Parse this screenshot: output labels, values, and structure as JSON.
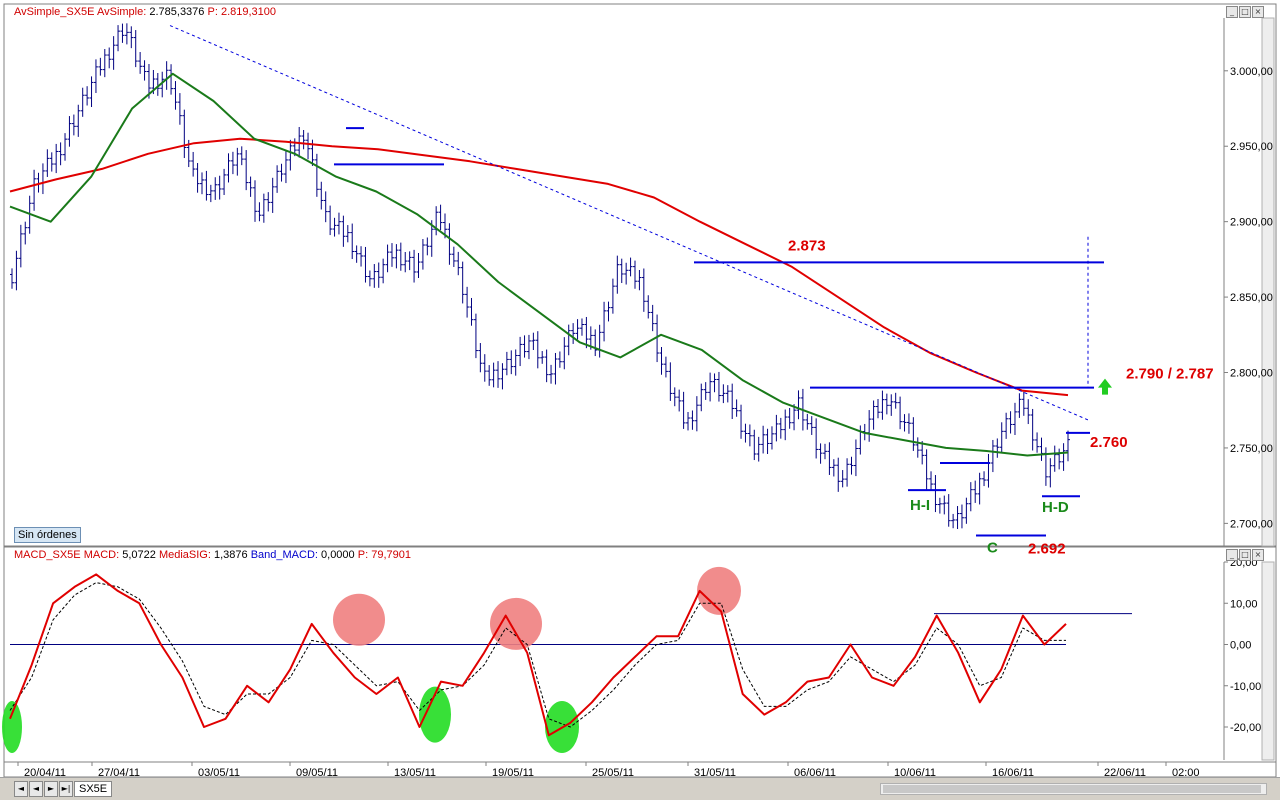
{
  "upper_header": {
    "series_name": "AvSimple_SX5E",
    "indicator_label": "AvSimple:",
    "indicator_value": "2.785,3376",
    "p_label": "P:",
    "p_value": "2.819,3100"
  },
  "lower_header": {
    "series_name": "MACD_SX5E",
    "macd_label": "MACD:",
    "macd_value": "5,0722",
    "signal_label": "MediaSIG:",
    "signal_value": "1,3876",
    "band_label": "Band_MACD:",
    "band_value": "0,0000",
    "p_label": "P:",
    "p_value": "79,7901"
  },
  "no_orders_label": "Sin órdenes",
  "symbol_tab": "SX5E",
  "nav_buttons": [
    "◄",
    "◄",
    "►",
    "►|"
  ],
  "colors": {
    "price_bars": "#000080",
    "ma_long": "#e00000",
    "ma_short": "#1a7a1a",
    "levels": "#0000dd",
    "annotation_red": "#dd0000",
    "annotation_green": "#1a8a1a",
    "macd": "#e00000",
    "signal": "#000000",
    "peak_circle": "#f08080",
    "trough_circle": "#22dd22",
    "arrow": "#22cc22"
  },
  "chart_data": [
    {
      "type": "candlestick",
      "title": "",
      "xlabel": "",
      "ylabel": "",
      "ylim": [
        2685,
        3035
      ],
      "y_ticks": [
        "3.000,00",
        "2.950,00",
        "2.900,00",
        "2.850,00",
        "2.800,00",
        "2.750,00",
        "2.700,00"
      ],
      "y_tick_values": [
        3000,
        2950,
        2900,
        2850,
        2800,
        2750,
        2700
      ],
      "x_tick_labels": [
        "20/04/11",
        "27/04/11",
        "03/05/11",
        "09/05/11",
        "13/05/11",
        "19/05/11",
        "25/05/11",
        "31/05/11",
        "06/06/11",
        "10/06/11",
        "16/06/11",
        "22/06/11",
        "02:00"
      ],
      "grid": false,
      "series": [
        {
          "name": "SX5E",
          "values": [
            2865,
            2925,
            2945,
            2975,
            3005,
            3030,
            2990,
            2998,
            2930,
            2920,
            2945,
            2905,
            2935,
            2960,
            2900,
            2890,
            2860,
            2880,
            2870,
            2905,
            2860,
            2795,
            2805,
            2820,
            2800,
            2830,
            2820,
            2870,
            2860,
            2800,
            2765,
            2795,
            2780,
            2750,
            2760,
            2780,
            2745,
            2730,
            2765,
            2785,
            2760,
            2720,
            2700,
            2725,
            2760,
            2780,
            2735,
            2750
          ]
        },
        {
          "name": "AvSimple long",
          "values": [
            2920,
            2928,
            2935,
            2945,
            2952,
            2955,
            2953,
            2950,
            2948,
            2944,
            2940,
            2935,
            2930,
            2925,
            2916,
            2900,
            2885,
            2870,
            2850,
            2830,
            2813,
            2800,
            2788,
            2785
          ]
        },
        {
          "name": "AvSimple short",
          "values": [
            2910,
            2900,
            2930,
            2975,
            2998,
            2980,
            2955,
            2945,
            2930,
            2920,
            2905,
            2885,
            2860,
            2840,
            2820,
            2810,
            2825,
            2815,
            2795,
            2780,
            2770,
            2760,
            2755,
            2750,
            2748,
            2745,
            2747
          ]
        }
      ],
      "annotations": [
        {
          "text": "2.873",
          "value": 2873
        },
        {
          "text": "2.790 / 2.787",
          "value": 2790
        },
        {
          "text": "2.760",
          "value": 2760
        },
        {
          "text": "2.692",
          "value": 2692
        },
        {
          "text": "H-I"
        },
        {
          "text": "H-D"
        },
        {
          "text": "C"
        }
      ],
      "horizontal_levels": [
        2873,
        2790,
        2760,
        2740,
        2718,
        2692
      ]
    },
    {
      "type": "line",
      "title": "",
      "xlabel": "",
      "ylabel": "",
      "ylim": [
        -28,
        20
      ],
      "y_ticks": [
        "20,00",
        "10,00",
        "0,00",
        "-10,00",
        "-20,00"
      ],
      "y_tick_values": [
        20,
        10,
        0,
        -10,
        -20
      ],
      "grid": false,
      "series": [
        {
          "name": "MACD",
          "values": [
            -18,
            -5,
            10,
            14,
            17,
            13,
            10,
            0,
            -8,
            -20,
            -18,
            -10,
            -14,
            -6,
            5,
            -2,
            -8,
            -12,
            -8,
            -20,
            -9,
            -10,
            -2,
            7,
            -2,
            -22,
            -19,
            -14,
            -8,
            -3,
            2,
            2,
            13,
            8,
            -12,
            -17,
            -14,
            -9,
            -8,
            0,
            -8,
            -10,
            -3,
            7,
            -2,
            -14,
            -6,
            7,
            0,
            5
          ]
        },
        {
          "name": "MediaSIG",
          "values": [
            -16,
            -8,
            6,
            12,
            15,
            14,
            11,
            4,
            -4,
            -15,
            -17,
            -12,
            -12,
            -8,
            1,
            0,
            -5,
            -10,
            -9,
            -16,
            -11,
            -10,
            -5,
            4,
            0,
            -18,
            -20,
            -16,
            -11,
            -5,
            0,
            1,
            10,
            10,
            -6,
            -15,
            -15,
            -11,
            -9,
            -3,
            -6,
            -9,
            -5,
            4,
            0,
            -10,
            -8,
            4,
            1,
            1
          ]
        }
      ],
      "band_value": 0,
      "horizontal_levels": [
        0,
        7.5
      ]
    }
  ]
}
